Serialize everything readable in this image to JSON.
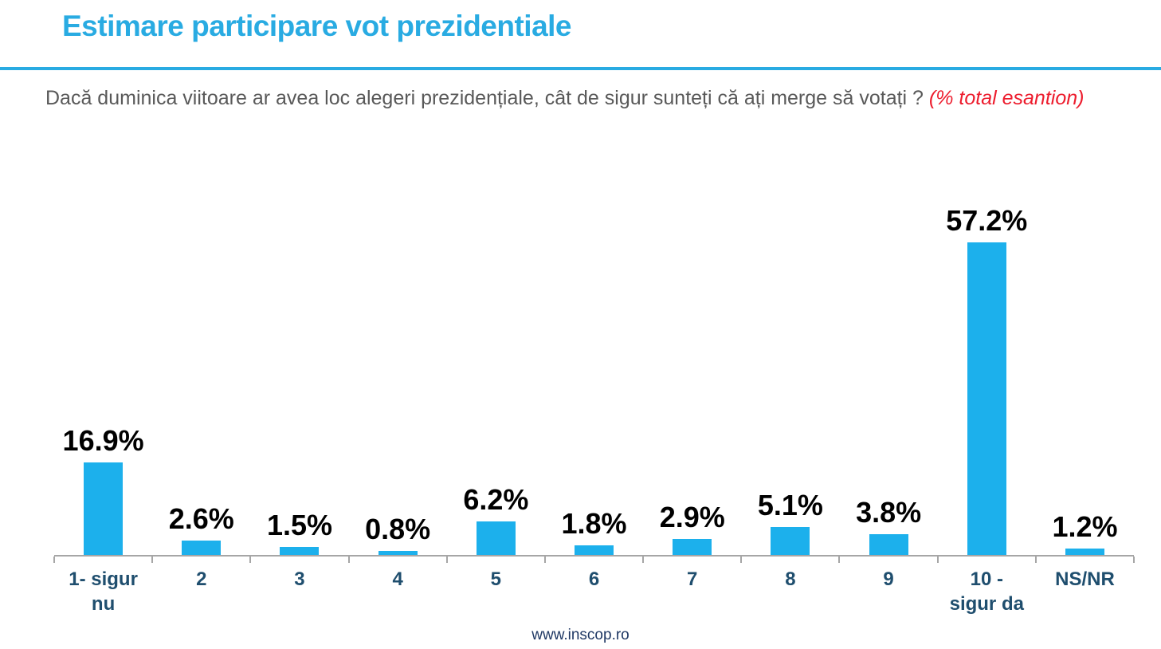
{
  "header": {
    "title": "Estimare participare vot prezidentiale"
  },
  "question": {
    "text": "Dacă duminica viitoare ar avea loc alegeri prezidențiale, cât de sigur sunteți că ați merge să votați ? ",
    "accent": "(% total esantion)"
  },
  "footer": {
    "website": "www.inscop.ro"
  },
  "colors": {
    "title_blue": "#29ABE2",
    "rule_blue": "#29ABE2",
    "bar_blue": "#1CB0EC",
    "question_gray": "#595959",
    "accent_red": "#ED1C2D",
    "value_label_black": "#000000",
    "category_navy": "#1F4E6E",
    "footer_navy": "#1F3864",
    "axis_gray": "#A6A6A6"
  },
  "chart_data": {
    "type": "bar",
    "title": "Estimare participare vot prezidentiale",
    "categories": [
      "1- sigur nu",
      "2",
      "3",
      "4",
      "5",
      "6",
      "7",
      "8",
      "9",
      "10 - sigur da",
      "NS/NR"
    ],
    "values": [
      16.9,
      2.6,
      1.5,
      0.8,
      6.2,
      1.8,
      2.9,
      5.1,
      3.8,
      57.2,
      1.2
    ],
    "labels": [
      "16.9%",
      "2.6%",
      "1.5%",
      "0.8%",
      "6.2%",
      "1.8%",
      "2.9%",
      "5.1%",
      "3.8%",
      "57.2%",
      "1.2%"
    ],
    "xlabel": "",
    "ylabel": "",
    "ylim": [
      0,
      60
    ],
    "grid": false,
    "legend": false,
    "bar_color": "#1CB0EC",
    "value_labels_position": "above-bars",
    "unit": "%"
  }
}
